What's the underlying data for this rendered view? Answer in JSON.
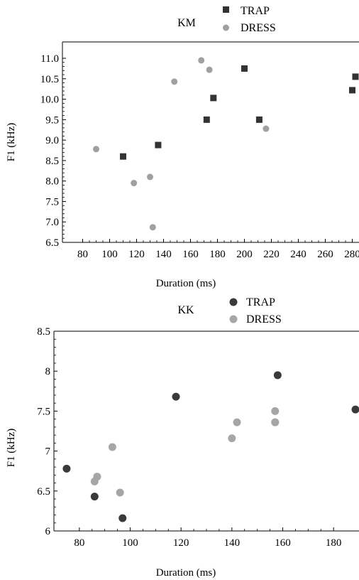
{
  "chart_data": [
    {
      "type": "scatter",
      "title": "KM",
      "xlabel": "Duration (ms)",
      "ylabel": "F1 (kHz)",
      "xlim": [
        65,
        285
      ],
      "ylim": [
        6.5,
        11.4
      ],
      "xticks": [
        80,
        100,
        120,
        140,
        160,
        180,
        200,
        220,
        240,
        260,
        280
      ],
      "yticks": [
        6.5,
        7.0,
        7.5,
        8.0,
        8.5,
        9.0,
        9.5,
        10.0,
        10.5,
        11.0
      ],
      "xtick_labels": [
        "80",
        "100",
        "120",
        "140",
        "160",
        "180",
        "200",
        "220",
        "240",
        "260",
        "280"
      ],
      "ytick_labels": [
        "6.5",
        "7.0",
        "7.5",
        "8.0",
        "8.5",
        "9.0",
        "9.5",
        "10.0",
        "10.5",
        "11.0"
      ],
      "legend": "top-center",
      "grid": false,
      "series": [
        {
          "name": "TRAP",
          "marker": "square",
          "color": "#333333",
          "points": [
            [
              110,
              8.6
            ],
            [
              136,
              8.88
            ],
            [
              172,
              9.5
            ],
            [
              177,
              10.03
            ],
            [
              200,
              10.75
            ],
            [
              211,
              9.5
            ],
            [
              280,
              10.22
            ],
            [
              285,
              10.55
            ]
          ]
        },
        {
          "name": "DRESS",
          "marker": "circle",
          "color": "#a0a0a0",
          "points": [
            [
              90,
              8.78
            ],
            [
              118,
              7.95
            ],
            [
              130,
              8.1
            ],
            [
              132,
              6.87
            ],
            [
              148,
              10.43
            ],
            [
              168,
              10.95
            ],
            [
              174,
              10.72
            ],
            [
              216,
              9.28
            ]
          ]
        }
      ]
    },
    {
      "type": "scatter",
      "title": "KK",
      "xlabel": "Duration (ms)",
      "ylabel": "F1 (kHz)",
      "xlim": [
        70,
        190
      ],
      "ylim": [
        6,
        8.5
      ],
      "xticks": [
        80,
        100,
        120,
        140,
        160,
        180
      ],
      "yticks": [
        6,
        6.5,
        7,
        7.5,
        8,
        8.5
      ],
      "xtick_labels": [
        "80",
        "100",
        "120",
        "140",
        "160",
        "180"
      ],
      "ytick_labels": [
        "6",
        "6.5",
        "7",
        "7.5",
        "8",
        "8.5"
      ],
      "legend": "top-center",
      "grid": false,
      "series": [
        {
          "name": "TRAP",
          "marker": "circle",
          "color": "#3a3a3a",
          "points": [
            [
              75,
              6.78
            ],
            [
              86,
              6.43
            ],
            [
              97,
              6.16
            ],
            [
              118,
              7.68
            ],
            [
              158,
              7.95
            ],
            [
              189,
              7.52
            ]
          ]
        },
        {
          "name": "DRESS",
          "marker": "circle",
          "color": "#a6a6a6",
          "points": [
            [
              86,
              6.62
            ],
            [
              87,
              6.68
            ],
            [
              93,
              7.05
            ],
            [
              96,
              6.48
            ],
            [
              140,
              7.16
            ],
            [
              142,
              7.36
            ],
            [
              157,
              7.36
            ],
            [
              157,
              7.36
            ],
            [
              157,
              7.5
            ]
          ]
        }
      ]
    }
  ]
}
